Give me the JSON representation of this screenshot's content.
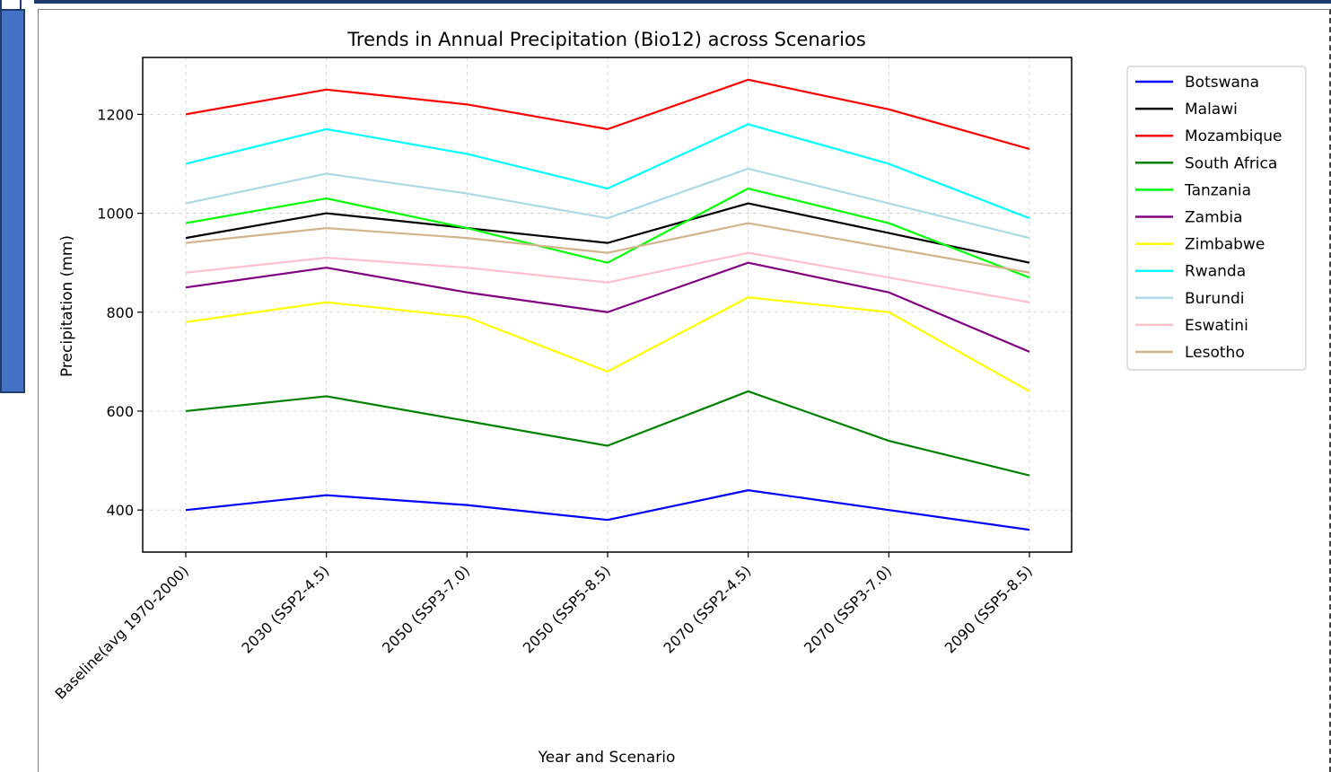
{
  "chart_data": {
    "type": "line",
    "title": "Trends in Annual Precipitation (Bio12) across Scenarios",
    "xlabel": "Year and Scenario",
    "ylabel": "Precipitation (mm)",
    "categories": [
      "Baseline(avg 1970-2000)",
      "2030 (SSP2-4.5)",
      "2050 (SSP3-7.0)",
      "2050 (SSP5-8.5)",
      "2070 (SSP2-4.5)",
      "2070 (SSP3-7.0)",
      "2090 (SSP5-8.5)"
    ],
    "ylim": [
      315,
      1315
    ],
    "yticks": [
      400,
      600,
      800,
      1000,
      1200
    ],
    "grid": true,
    "legend_position": "right",
    "series": [
      {
        "name": "Botswana",
        "color": "#0000ff",
        "values": [
          400,
          430,
          410,
          380,
          440,
          400,
          360
        ]
      },
      {
        "name": "Malawi",
        "color": "#000000",
        "values": [
          950,
          1000,
          970,
          940,
          1020,
          960,
          900
        ]
      },
      {
        "name": "Mozambique",
        "color": "#ff0000",
        "values": [
          1200,
          1250,
          1220,
          1170,
          1270,
          1210,
          1130
        ]
      },
      {
        "name": "South Africa",
        "color": "#008000",
        "values": [
          600,
          630,
          580,
          530,
          640,
          540,
          470
        ]
      },
      {
        "name": "Tanzania",
        "color": "#00ff00",
        "values": [
          980,
          1030,
          970,
          900,
          1050,
          980,
          870
        ]
      },
      {
        "name": "Zambia",
        "color": "#800080",
        "values": [
          850,
          890,
          840,
          800,
          900,
          840,
          720
        ]
      },
      {
        "name": "Zimbabwe",
        "color": "#ffff00",
        "values": [
          780,
          820,
          790,
          680,
          830,
          800,
          640
        ]
      },
      {
        "name": "Rwanda",
        "color": "#00ffff",
        "values": [
          1100,
          1170,
          1120,
          1050,
          1180,
          1100,
          990
        ]
      },
      {
        "name": "Burundi",
        "color": "#add8e6",
        "values": [
          1020,
          1080,
          1040,
          990,
          1090,
          1020,
          950
        ]
      },
      {
        "name": "Eswatini",
        "color": "#ffc0cb",
        "values": [
          880,
          910,
          890,
          860,
          920,
          870,
          820
        ]
      },
      {
        "name": "Lesotho",
        "color": "#d2b48c",
        "values": [
          940,
          970,
          950,
          920,
          980,
          930,
          880
        ]
      }
    ]
  }
}
